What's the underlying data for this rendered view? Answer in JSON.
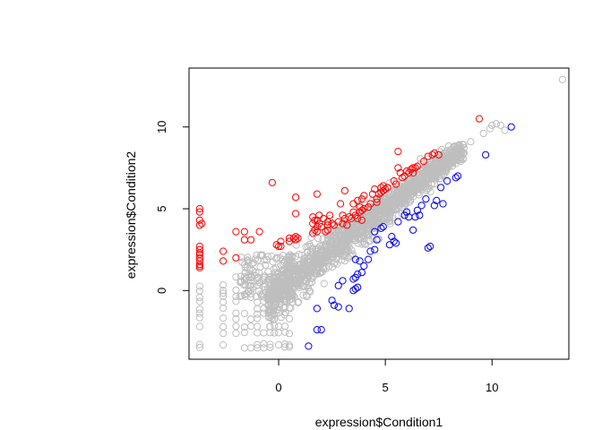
{
  "chart_data": {
    "type": "scatter",
    "title": "",
    "xlabel": "expression$Condition1",
    "ylabel": "expression$Condition2",
    "xlim": [
      -4.2,
      13.6
    ],
    "ylim": [
      -4.2,
      13.6
    ],
    "xticks": [
      0,
      5,
      10
    ],
    "yticks": [
      0,
      5,
      10
    ],
    "xtick_labels": [
      "0",
      "5",
      "10"
    ],
    "ytick_labels": [
      "0",
      "5",
      "10"
    ],
    "grid": false,
    "legend": "none",
    "marker": "open-circle",
    "series": [
      {
        "color": "#ff0000",
        "points": [
          [
            -3.7,
            5.0
          ],
          [
            -3.7,
            4.8
          ],
          [
            -3.7,
            4.3
          ],
          [
            -3.6,
            4.1
          ],
          [
            -3.7,
            4.0
          ],
          [
            -3.7,
            2.7
          ],
          [
            -3.7,
            2.5
          ],
          [
            -3.7,
            2.3
          ],
          [
            -3.7,
            2.2
          ],
          [
            -3.7,
            2.0
          ],
          [
            -3.7,
            1.8
          ],
          [
            -3.7,
            1.6
          ],
          [
            -3.7,
            1.5
          ],
          [
            -3.7,
            1.4
          ],
          [
            -2.6,
            2.4
          ],
          [
            -2.6,
            1.8
          ],
          [
            -2.0,
            3.6
          ],
          [
            -2.0,
            2.0
          ],
          [
            -1.6,
            3.6
          ],
          [
            -1.6,
            3.1
          ],
          [
            -1.3,
            3.1
          ],
          [
            -0.9,
            3.6
          ],
          [
            -0.3,
            6.6
          ],
          [
            -0.1,
            2.8
          ],
          [
            0.0,
            2.7
          ],
          [
            0.1,
            3.0
          ],
          [
            0.1,
            2.7
          ],
          [
            0.5,
            3.2
          ],
          [
            0.5,
            3.0
          ],
          [
            0.7,
            3.2
          ],
          [
            0.8,
            3.3
          ],
          [
            0.8,
            3.1
          ],
          [
            0.9,
            3.2
          ],
          [
            0.8,
            4.7
          ],
          [
            0.8,
            5.7
          ],
          [
            1.6,
            3.5
          ],
          [
            1.6,
            4.5
          ],
          [
            1.6,
            4.1
          ],
          [
            1.7,
            3.7
          ],
          [
            1.7,
            4.3
          ],
          [
            1.8,
            3.6
          ],
          [
            1.8,
            3.9
          ],
          [
            1.8,
            4.3
          ],
          [
            1.8,
            5.9
          ],
          [
            1.9,
            4.6
          ],
          [
            1.9,
            4.1
          ],
          [
            2.0,
            3.9
          ],
          [
            2.1,
            4.4
          ],
          [
            2.2,
            3.6
          ],
          [
            2.3,
            4.0
          ],
          [
            2.3,
            3.7
          ],
          [
            2.4,
            4.6
          ],
          [
            2.3,
            4.2
          ],
          [
            2.5,
            4.1
          ],
          [
            2.6,
            4.0
          ],
          [
            2.8,
            4.2
          ],
          [
            2.9,
            5.3
          ],
          [
            3.0,
            4.1
          ],
          [
            3.0,
            4.6
          ],
          [
            3.1,
            4.4
          ],
          [
            3.1,
            6.1
          ],
          [
            3.2,
            4.0
          ],
          [
            3.3,
            4.5
          ],
          [
            3.4,
            4.4
          ],
          [
            3.5,
            4.8
          ],
          [
            3.5,
            5.3
          ],
          [
            3.6,
            4.6
          ],
          [
            3.7,
            5.5
          ],
          [
            3.7,
            4.4
          ],
          [
            3.8,
            4.8
          ],
          [
            3.8,
            5.1
          ],
          [
            3.9,
            5.6
          ],
          [
            3.9,
            4.9
          ],
          [
            4.0,
            5.8
          ],
          [
            4.0,
            5.0
          ],
          [
            3.9,
            4.3
          ],
          [
            4.2,
            5.1
          ],
          [
            4.3,
            5.3
          ],
          [
            4.4,
            5.9
          ],
          [
            4.5,
            6.2
          ],
          [
            4.6,
            5.4
          ],
          [
            4.6,
            5.6
          ],
          [
            4.7,
            5.9
          ],
          [
            4.8,
            6.3
          ],
          [
            4.8,
            6.0
          ],
          [
            4.9,
            6.4
          ],
          [
            4.9,
            6.1
          ],
          [
            5.0,
            6.2
          ],
          [
            5.1,
            6.3
          ],
          [
            5.4,
            6.7
          ],
          [
            5.5,
            6.5
          ],
          [
            5.8,
            6.9
          ],
          [
            5.6,
            7.5
          ],
          [
            5.7,
            7.2
          ],
          [
            5.9,
            7.0
          ],
          [
            6.0,
            7.3
          ],
          [
            6.1,
            7.2
          ],
          [
            6.2,
            7.4
          ],
          [
            6.3,
            7.5
          ],
          [
            6.4,
            7.5
          ],
          [
            6.3,
            7.2
          ],
          [
            5.6,
            8.5
          ],
          [
            6.5,
            7.6
          ],
          [
            6.8,
            7.9
          ],
          [
            7.0,
            8.2
          ],
          [
            7.2,
            8.3
          ],
          [
            7.3,
            8.4
          ],
          [
            7.5,
            8.3
          ],
          [
            9.4,
            10.5
          ]
        ]
      },
      {
        "color": "#0000ff",
        "points": [
          [
            1.4,
            -3.4
          ],
          [
            1.8,
            -2.4
          ],
          [
            2.0,
            -2.4
          ],
          [
            1.8,
            -1.1
          ],
          [
            2.5,
            -0.6
          ],
          [
            2.6,
            -0.9
          ],
          [
            2.8,
            -1.0
          ],
          [
            3.3,
            -1.1
          ],
          [
            2.8,
            0.3
          ],
          [
            3.0,
            0.6
          ],
          [
            3.5,
            0.0
          ],
          [
            3.6,
            0.1
          ],
          [
            3.7,
            0.2
          ],
          [
            3.5,
            0.7
          ],
          [
            3.6,
            0.8
          ],
          [
            3.7,
            1.0
          ],
          [
            3.9,
            1.1
          ],
          [
            4.0,
            1.5
          ],
          [
            3.8,
            1.8
          ],
          [
            3.6,
            1.9
          ],
          [
            4.2,
            1.9
          ],
          [
            4.3,
            2.4
          ],
          [
            4.5,
            2.5
          ],
          [
            4.6,
            3.1
          ],
          [
            4.5,
            3.6
          ],
          [
            4.8,
            3.8
          ],
          [
            4.9,
            3.9
          ],
          [
            5.2,
            2.8
          ],
          [
            5.3,
            3.3
          ],
          [
            5.4,
            3.0
          ],
          [
            5.5,
            2.9
          ],
          [
            5.6,
            4.2
          ],
          [
            5.9,
            4.6
          ],
          [
            6.0,
            4.8
          ],
          [
            6.1,
            4.5
          ],
          [
            6.3,
            3.7
          ],
          [
            6.4,
            4.5
          ],
          [
            6.5,
            4.9
          ],
          [
            6.7,
            5.2
          ],
          [
            6.6,
            4.6
          ],
          [
            6.9,
            5.6
          ],
          [
            7.0,
            2.6
          ],
          [
            7.1,
            2.7
          ],
          [
            7.3,
            5.2
          ],
          [
            7.4,
            5.5
          ],
          [
            7.6,
            6.3
          ],
          [
            7.7,
            5.3
          ],
          [
            7.9,
            6.7
          ],
          [
            8.3,
            6.9
          ],
          [
            8.4,
            7.0
          ],
          [
            9.7,
            8.3
          ],
          [
            10.9,
            10.0
          ]
        ]
      }
    ]
  }
}
